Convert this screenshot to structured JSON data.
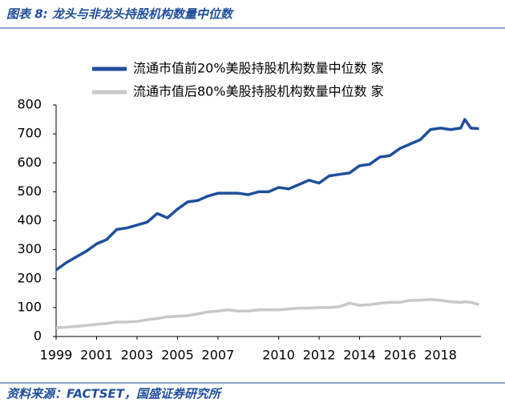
{
  "chart_data": {
    "type": "line",
    "title": "图表 8:  龙头与非龙头持股机构数量中位数",
    "source": "资料来源：FACTSET，国盛证券研究所",
    "x": [
      1999,
      1999.5,
      2000,
      2000.5,
      2001,
      2001.5,
      2002,
      2002.5,
      2003,
      2003.5,
      2004,
      2004.5,
      2005,
      2005.5,
      2006,
      2006.5,
      2007,
      2007.5,
      2008,
      2008.5,
      2009,
      2009.5,
      2010,
      2010.5,
      2011,
      2011.5,
      2012,
      2012.5,
      2013,
      2013.5,
      2014,
      2014.5,
      2015,
      2015.5,
      2016,
      2016.5,
      2017,
      2017.5,
      2018,
      2018.5,
      2019,
      2019.2,
      2019.5,
      2019.9
    ],
    "series": [
      {
        "name": "流通市值前20%美股持股机构数量中位数 家",
        "color": "#1f4e9c",
        "values": [
          230,
          255,
          275,
          295,
          320,
          335,
          370,
          375,
          385,
          395,
          425,
          410,
          440,
          465,
          470,
          485,
          495,
          495,
          495,
          490,
          500,
          500,
          515,
          510,
          525,
          540,
          530,
          555,
          560,
          565,
          590,
          595,
          620,
          625,
          650,
          665,
          680,
          715,
          720,
          715,
          720,
          750,
          720,
          718
        ]
      },
      {
        "name": "流通市值后80%美股持股机构数量中位数 家",
        "color": "#c8c8c8",
        "values": [
          30,
          32,
          35,
          38,
          42,
          45,
          50,
          50,
          52,
          58,
          62,
          68,
          70,
          72,
          78,
          85,
          88,
          92,
          88,
          88,
          92,
          92,
          92,
          95,
          98,
          98,
          100,
          100,
          103,
          115,
          108,
          110,
          115,
          118,
          118,
          125,
          125,
          128,
          125,
          120,
          118,
          120,
          118,
          110
        ]
      }
    ],
    "xlim": [
      1999,
      2020
    ],
    "xticks": [
      1999,
      2001,
      2003,
      2005,
      2007,
      2010,
      2012,
      2014,
      2016,
      2018
    ],
    "ylim": [
      0,
      800
    ],
    "yticks": [
      0,
      100,
      200,
      300,
      400,
      500,
      600,
      700,
      800
    ],
    "grid": false
  }
}
